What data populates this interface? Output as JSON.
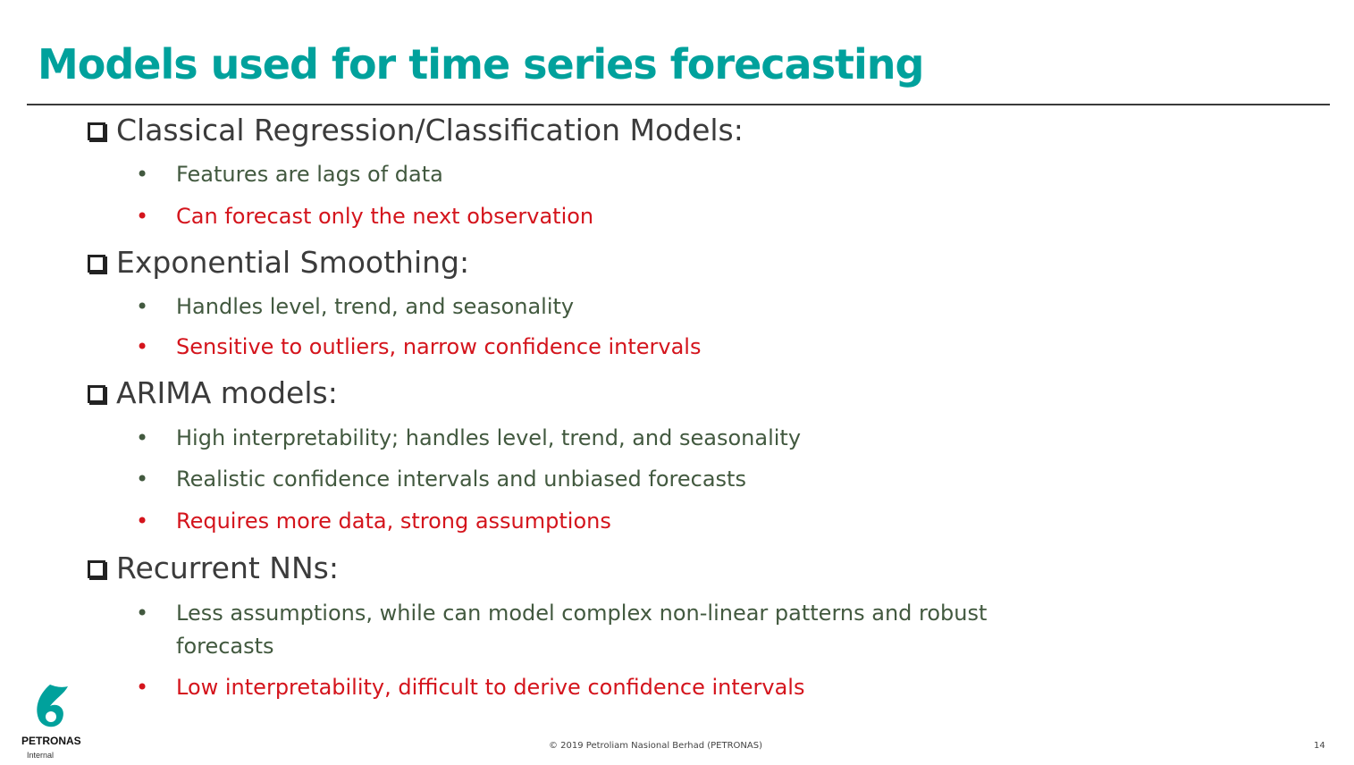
{
  "slide": {
    "title": "Models used for time series forecasting",
    "sections": [
      {
        "heading": "Classical Regression/Classification Models:",
        "bullets": [
          {
            "text": "Features are lags of data",
            "tone": "pro"
          },
          {
            "text": "Can forecast only the next observation",
            "tone": "con"
          }
        ]
      },
      {
        "heading": "Exponential Smoothing:",
        "bullets": [
          {
            "text": "Handles level, trend, and seasonality",
            "tone": "pro"
          },
          {
            "text": "Sensitive to outliers, narrow confidence intervals",
            "tone": "con"
          }
        ]
      },
      {
        "heading": "ARIMA models:",
        "bullets": [
          {
            "text": "High interpretability; handles level, trend, and seasonality",
            "tone": "pro"
          },
          {
            "text": "Realistic confidence intervals and unbiased forecasts",
            "tone": "pro"
          },
          {
            "text": "Requires more data, strong assumptions",
            "tone": "con"
          }
        ]
      },
      {
        "heading": "Recurrent NNs:",
        "bullets": [
          {
            "text": "Less assumptions, while can model complex non-linear patterns and robust",
            "tone": "pro"
          },
          {
            "text": "forecasts",
            "tone": "pro"
          },
          {
            "text": "Low interpretability, difficult to derive confidence intervals",
            "tone": "con"
          }
        ]
      }
    ],
    "bullet_symbol": "•",
    "footer": "© 2019 Petroliam Nasional Berhad (PETRONAS)",
    "page_number": "14",
    "logo_text": "PETRONAS",
    "classification": "Internal",
    "colors": {
      "title": "#00a19c",
      "pro": "#42593f",
      "con": "#d4141c"
    }
  }
}
